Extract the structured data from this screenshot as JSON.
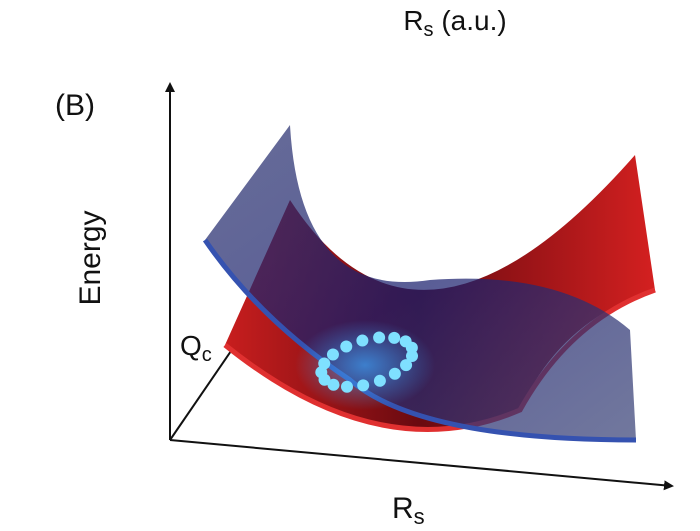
{
  "top_label": {
    "base": "R",
    "subscript": "s",
    "suffix": " (a.u.)"
  },
  "panel_label": "(B)",
  "axes": {
    "y_label": "Energy",
    "z_label": {
      "base": "Q",
      "subscript": "c"
    },
    "x_label": {
      "base": "R",
      "subscript": "s"
    }
  }
}
